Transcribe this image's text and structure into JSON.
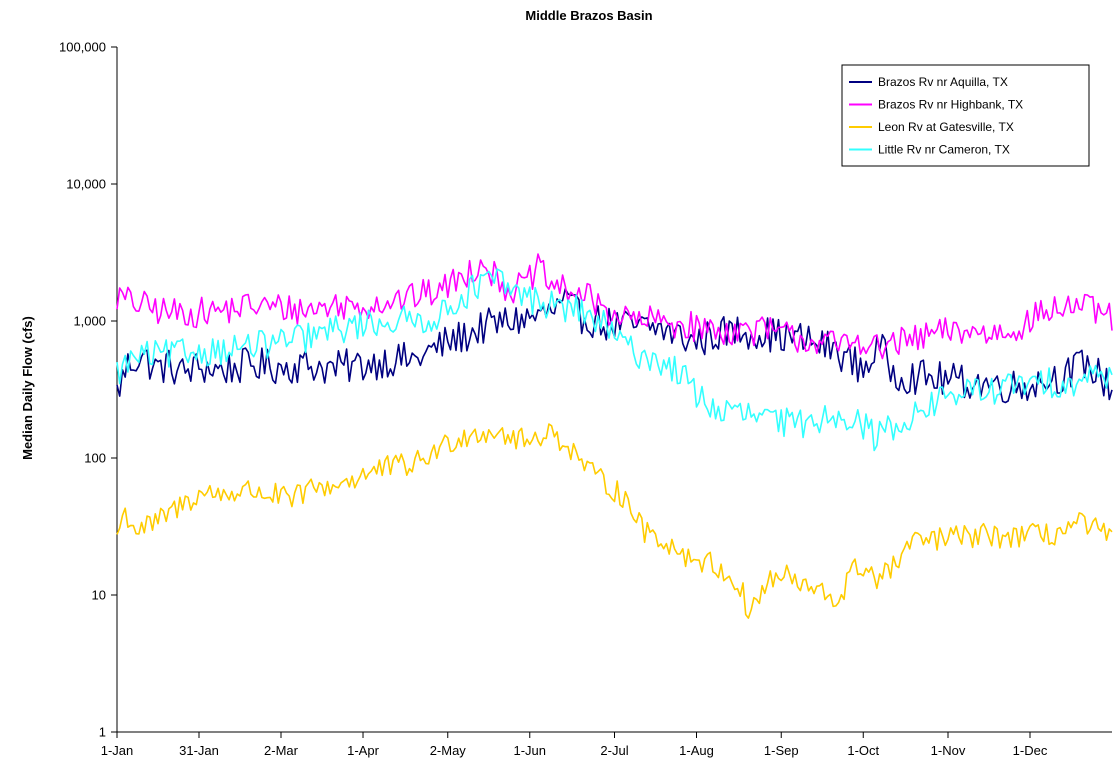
{
  "chart_data": {
    "type": "line",
    "title": "Middle Brazos Basin",
    "xlabel": "",
    "ylabel": "Median Daily Flow (cfs)",
    "y_scale": "log",
    "ylim": [
      1,
      100000
    ],
    "y_ticks": [
      "1",
      "10",
      "100",
      "1,000",
      "10,000",
      "100,000"
    ],
    "x_domain_days": [
      1,
      365
    ],
    "x_ticks": [
      {
        "day": 1,
        "label": "1-Jan"
      },
      {
        "day": 31,
        "label": "31-Jan"
      },
      {
        "day": 61,
        "label": "2-Mar"
      },
      {
        "day": 91,
        "label": "1-Apr"
      },
      {
        "day": 122,
        "label": "2-May"
      },
      {
        "day": 152,
        "label": "1-Jun"
      },
      {
        "day": 183,
        "label": "2-Jul"
      },
      {
        "day": 213,
        "label": "1-Aug"
      },
      {
        "day": 244,
        "label": "1-Sep"
      },
      {
        "day": 274,
        "label": "1-Oct"
      },
      {
        "day": 305,
        "label": "1-Nov"
      },
      {
        "day": 335,
        "label": "1-Dec"
      }
    ],
    "grid": false,
    "legend_position": "top-right",
    "series": [
      {
        "name": "Brazos Rv nr Aquilla, TX",
        "color": "#000080",
        "anchors": [
          [
            1,
            300
          ],
          [
            5,
            480
          ],
          [
            10,
            560
          ],
          [
            15,
            450
          ],
          [
            20,
            470
          ],
          [
            25,
            420
          ],
          [
            31,
            460
          ],
          [
            40,
            440
          ],
          [
            50,
            480
          ],
          [
            61,
            460
          ],
          [
            70,
            480
          ],
          [
            80,
            450
          ],
          [
            91,
            480
          ],
          [
            100,
            520
          ],
          [
            110,
            520
          ],
          [
            122,
            700
          ],
          [
            130,
            800
          ],
          [
            135,
            900
          ],
          [
            140,
            950
          ],
          [
            145,
            1000
          ],
          [
            152,
            1050
          ],
          [
            160,
            1150
          ],
          [
            165,
            1350
          ],
          [
            170,
            1100
          ],
          [
            180,
            950
          ],
          [
            190,
            900
          ],
          [
            200,
            880
          ],
          [
            205,
            800
          ],
          [
            213,
            700
          ],
          [
            220,
            800
          ],
          [
            230,
            850
          ],
          [
            240,
            800
          ],
          [
            250,
            750
          ],
          [
            260,
            650
          ],
          [
            265,
            600
          ],
          [
            270,
            500
          ],
          [
            274,
            450
          ],
          [
            280,
            650
          ],
          [
            285,
            420
          ],
          [
            290,
            400
          ],
          [
            300,
            380
          ],
          [
            310,
            360
          ],
          [
            320,
            350
          ],
          [
            330,
            330
          ],
          [
            340,
            370
          ],
          [
            350,
            420
          ],
          [
            355,
            500
          ],
          [
            360,
            400
          ],
          [
            365,
            330
          ]
        ],
        "noise": 0.13
      },
      {
        "name": "Brazos Rv nr Highbank, TX",
        "color": "#ff00ff",
        "anchors": [
          [
            1,
            1500
          ],
          [
            10,
            1300
          ],
          [
            20,
            1150
          ],
          [
            31,
            1150
          ],
          [
            40,
            1200
          ],
          [
            50,
            1300
          ],
          [
            61,
            1250
          ],
          [
            70,
            1200
          ],
          [
            80,
            1300
          ],
          [
            91,
            1300
          ],
          [
            100,
            1400
          ],
          [
            110,
            1500
          ],
          [
            120,
            1700
          ],
          [
            130,
            2300
          ],
          [
            135,
            2800
          ],
          [
            140,
            2000
          ],
          [
            145,
            1700
          ],
          [
            150,
            1800
          ],
          [
            155,
            2400
          ],
          [
            160,
            1800
          ],
          [
            170,
            1600
          ],
          [
            175,
            1400
          ],
          [
            180,
            1200
          ],
          [
            190,
            1000
          ],
          [
            200,
            1000
          ],
          [
            213,
            900
          ],
          [
            220,
            850
          ],
          [
            230,
            850
          ],
          [
            240,
            850
          ],
          [
            250,
            750
          ],
          [
            260,
            700
          ],
          [
            265,
            650
          ],
          [
            270,
            700
          ],
          [
            274,
            750
          ],
          [
            280,
            600
          ],
          [
            285,
            700
          ],
          [
            290,
            700
          ],
          [
            300,
            800
          ],
          [
            310,
            850
          ],
          [
            320,
            800
          ],
          [
            330,
            900
          ],
          [
            340,
            1150
          ],
          [
            350,
            1300
          ],
          [
            355,
            1250
          ],
          [
            360,
            1150
          ],
          [
            365,
            1050
          ]
        ],
        "noise": 0.11
      },
      {
        "name": "Leon Rv at Gatesville, TX",
        "color": "#ffcc00",
        "anchors": [
          [
            1,
            28
          ],
          [
            4,
            40
          ],
          [
            8,
            30
          ],
          [
            15,
            33
          ],
          [
            22,
            42
          ],
          [
            31,
            55
          ],
          [
            40,
            55
          ],
          [
            50,
            58
          ],
          [
            61,
            52
          ],
          [
            65,
            48
          ],
          [
            70,
            58
          ],
          [
            80,
            63
          ],
          [
            91,
            75
          ],
          [
            100,
            85
          ],
          [
            110,
            90
          ],
          [
            120,
            120
          ],
          [
            125,
            140
          ],
          [
            130,
            150
          ],
          [
            140,
            160
          ],
          [
            145,
            140
          ],
          [
            152,
            130
          ],
          [
            158,
            160
          ],
          [
            165,
            130
          ],
          [
            170,
            100
          ],
          [
            175,
            75
          ],
          [
            180,
            65
          ],
          [
            185,
            55
          ],
          [
            190,
            42
          ],
          [
            193,
            30
          ],
          [
            200,
            26
          ],
          [
            205,
            22
          ],
          [
            210,
            19
          ],
          [
            215,
            18
          ],
          [
            220,
            16
          ],
          [
            225,
            14
          ],
          [
            230,
            10
          ],
          [
            232,
            7.5
          ],
          [
            235,
            9
          ],
          [
            240,
            13
          ],
          [
            245,
            14
          ],
          [
            250,
            12
          ],
          [
            255,
            11
          ],
          [
            260,
            10
          ],
          [
            265,
            9
          ],
          [
            270,
            15
          ],
          [
            274,
            16
          ],
          [
            280,
            13
          ],
          [
            285,
            16
          ],
          [
            290,
            22
          ],
          [
            295,
            25
          ],
          [
            305,
            26
          ],
          [
            315,
            27
          ],
          [
            325,
            27
          ],
          [
            335,
            27
          ],
          [
            345,
            28
          ],
          [
            350,
            32
          ],
          [
            355,
            33
          ],
          [
            360,
            29
          ],
          [
            365,
            26
          ]
        ],
        "noise": 0.09
      },
      {
        "name": "Little Rv nr Cameron, TX",
        "color": "#33ffff",
        "anchors": [
          [
            1,
            420
          ],
          [
            8,
            550
          ],
          [
            15,
            560
          ],
          [
            25,
            580
          ],
          [
            31,
            600
          ],
          [
            40,
            620
          ],
          [
            50,
            650
          ],
          [
            61,
            700
          ],
          [
            70,
            750
          ],
          [
            80,
            850
          ],
          [
            91,
            950
          ],
          [
            100,
            1000
          ],
          [
            110,
            1000
          ],
          [
            120,
            1100
          ],
          [
            125,
            1400
          ],
          [
            130,
            1650
          ],
          [
            135,
            1900
          ],
          [
            140,
            2000
          ],
          [
            145,
            1700
          ],
          [
            150,
            1500
          ],
          [
            160,
            1300
          ],
          [
            165,
            1250
          ],
          [
            170,
            1200
          ],
          [
            180,
            900
          ],
          [
            185,
            700
          ],
          [
            190,
            600
          ],
          [
            200,
            500
          ],
          [
            205,
            450
          ],
          [
            210,
            350
          ],
          [
            213,
            300
          ],
          [
            220,
            220
          ],
          [
            230,
            210
          ],
          [
            240,
            190
          ],
          [
            245,
            180
          ],
          [
            250,
            175
          ],
          [
            260,
            200
          ],
          [
            265,
            215
          ],
          [
            270,
            200
          ],
          [
            274,
            170
          ],
          [
            278,
            145
          ],
          [
            285,
            170
          ],
          [
            290,
            195
          ],
          [
            295,
            215
          ],
          [
            300,
            250
          ],
          [
            305,
            290
          ],
          [
            310,
            300
          ],
          [
            320,
            310
          ],
          [
            330,
            340
          ],
          [
            340,
            350
          ],
          [
            350,
            360
          ],
          [
            360,
            400
          ],
          [
            365,
            420
          ]
        ],
        "noise": 0.11
      }
    ]
  }
}
